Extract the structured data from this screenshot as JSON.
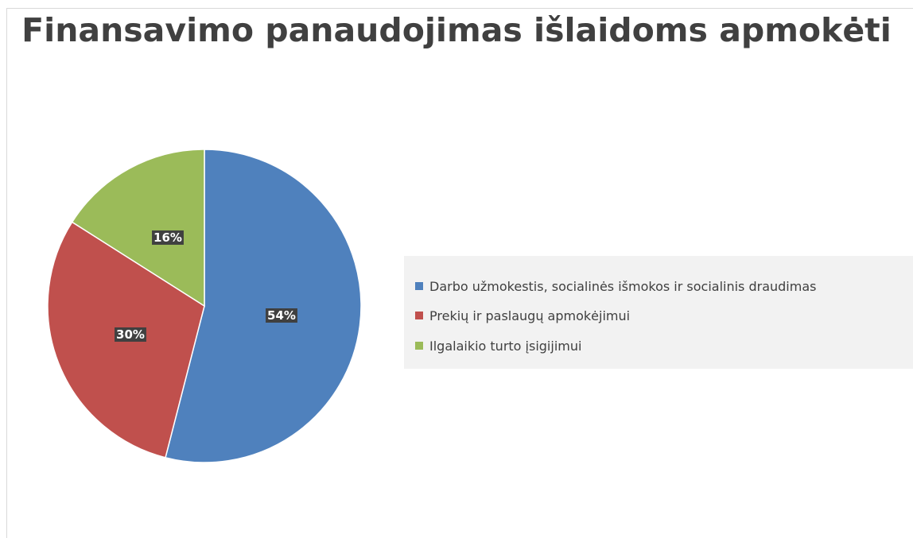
{
  "chart_data": {
    "type": "pie",
    "title": "Finansavimo panaudojimas išlaidoms apmokėti",
    "categories": [
      "Darbo užmokestis, socialinės išmokos ir socialinis draudimas",
      "Prekių ir paslaugų apmokėjimui",
      "Ilgalaikio turto įsigijimui"
    ],
    "values": [
      54,
      30,
      16
    ],
    "data_labels": [
      "54%",
      "30%",
      "16%"
    ],
    "colors": [
      "#4F81BD",
      "#C0504D",
      "#9BBB59"
    ],
    "legend": "right",
    "start_angle": "12 o'clock",
    "direction": "clockwise"
  }
}
